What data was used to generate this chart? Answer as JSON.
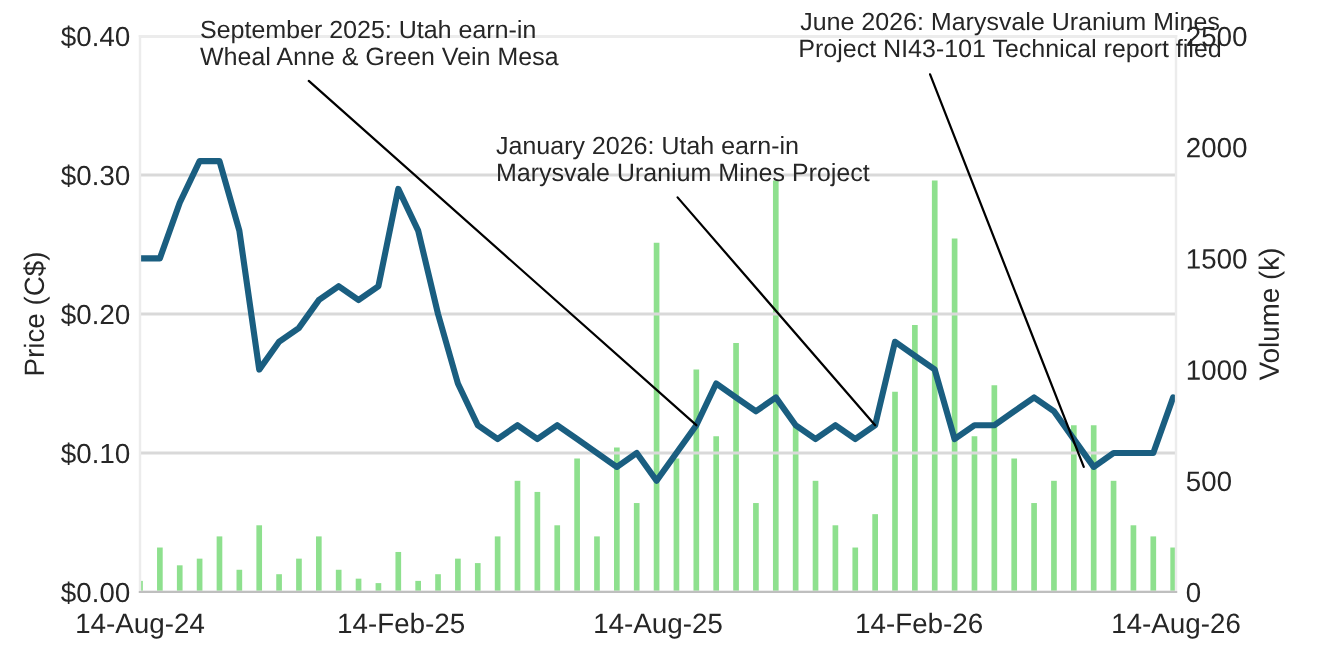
{
  "chart_data": {
    "type": "line",
    "ylabel": "Price (C$)",
    "y2label": "Volume (k)",
    "x": [
      "2024-08-14",
      "2024-08-28",
      "2024-09-11",
      "2024-09-25",
      "2024-10-09",
      "2024-10-23",
      "2024-11-06",
      "2024-11-20",
      "2024-12-04",
      "2024-12-18",
      "2025-01-01",
      "2025-01-15",
      "2025-01-29",
      "2025-02-12",
      "2025-02-26",
      "2025-03-12",
      "2025-03-26",
      "2025-04-09",
      "2025-04-23",
      "2025-05-07",
      "2025-05-21",
      "2025-06-04",
      "2025-06-18",
      "2025-07-02",
      "2025-07-16",
      "2025-07-30",
      "2025-08-13",
      "2025-08-27",
      "2025-09-10",
      "2025-09-24",
      "2025-10-08",
      "2025-10-22",
      "2025-11-05",
      "2025-11-19",
      "2025-12-03",
      "2025-12-17",
      "2025-12-31",
      "2026-01-14",
      "2026-01-28",
      "2026-02-11",
      "2026-02-25",
      "2026-03-11",
      "2026-03-25",
      "2026-04-08",
      "2026-04-22",
      "2026-05-06",
      "2026-05-20",
      "2026-06-03",
      "2026-06-17",
      "2026-07-01",
      "2026-07-15",
      "2026-07-29",
      "2026-08-12"
    ],
    "series": [
      {
        "type": "bar",
        "axis": "y2",
        "color": "#8ee08e",
        "values": [
          50,
          200,
          120,
          150,
          250,
          100,
          300,
          80,
          150,
          250,
          100,
          60,
          40,
          180,
          50,
          80,
          150,
          130,
          250,
          500,
          450,
          300,
          600,
          250,
          650,
          400,
          1570,
          600,
          1000,
          700,
          1120,
          400,
          1850,
          750,
          500,
          300,
          200,
          350,
          900,
          1200,
          1850,
          1590,
          700,
          930,
          600,
          400,
          500,
          750,
          750,
          500,
          300,
          250,
          200
        ]
      },
      {
        "color": "#1a5e80",
        "values": [
          0.24,
          0.24,
          0.28,
          0.31,
          0.31,
          0.26,
          0.16,
          0.18,
          0.19,
          0.21,
          0.22,
          0.21,
          0.22,
          0.29,
          0.26,
          0.2,
          0.15,
          0.12,
          0.11,
          0.12,
          0.11,
          0.12,
          0.11,
          0.1,
          0.09,
          0.1,
          0.08,
          0.1,
          0.12,
          0.15,
          0.14,
          0.13,
          0.14,
          0.12,
          0.11,
          0.12,
          0.11,
          0.12,
          0.18,
          0.17,
          0.16,
          0.11,
          0.12,
          0.12,
          0.13,
          0.14,
          0.13,
          0.11,
          0.09,
          0.1,
          0.1,
          0.1,
          0.14
        ]
      }
    ],
    "annotations": [
      {
        "text": "September 2025: Utah earn-in\nWheal Anne & Green Vein Mesa",
        "x": "2025-09-10",
        "y": 0.12
      },
      {
        "text": "January 2026: Utah earn-in\nMarysvale Uranium Mines Project",
        "x": "2026-01-14",
        "y": 0.12
      },
      {
        "text": "June 2026: Marysvale Uranium Mines\nProject NI43-101 Technical report filed",
        "x": "2026-06-10",
        "y": 0.09
      }
    ],
    "xlim": [
      "2024-08-14",
      "2026-08-14"
    ],
    "xticks": [
      {
        "value": "2024-08-14",
        "label": "14-Aug-24"
      },
      {
        "value": "2025-02-14",
        "label": "14-Feb-25"
      },
      {
        "value": "2025-08-14",
        "label": "14-Aug-25"
      },
      {
        "value": "2026-02-14",
        "label": "14-Feb-26"
      },
      {
        "value": "2026-08-14",
        "label": "14-Aug-26"
      }
    ],
    "ylim": [
      0,
      0.4
    ],
    "yticks": [
      {
        "value": 0,
        "label": "$0.00"
      },
      {
        "value": 0.1,
        "label": "$0.10"
      },
      {
        "value": 0.2,
        "label": "$0.20"
      },
      {
        "value": 0.3,
        "label": "$0.30"
      },
      {
        "value": 0.4,
        "label": "$0.40"
      }
    ],
    "y2lim": [
      0,
      2500
    ],
    "y2ticks": [
      0,
      500,
      1000,
      1500,
      2000,
      2500
    ],
    "grid": "y",
    "legend": false
  }
}
